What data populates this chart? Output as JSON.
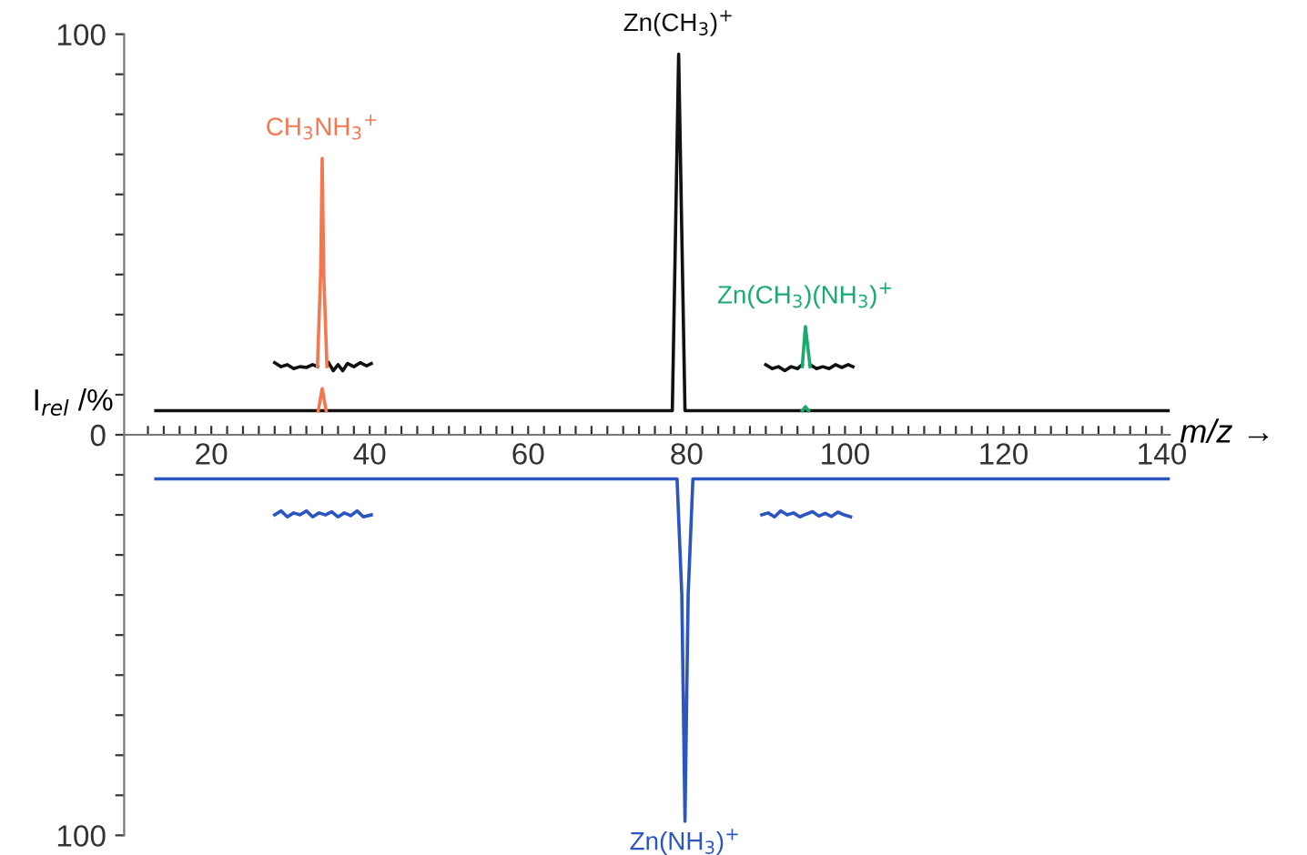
{
  "chart_data": {
    "type": "line",
    "xlabel": "m/z →",
    "ylabel": "I$_{rel}$ /%",
    "xlim": [
      9,
      141
    ],
    "ylim": [
      -100,
      100
    ],
    "xticks": [
      20,
      40,
      60,
      80,
      100,
      120,
      140,
      {
        "value": 12,
        "label": null
      },
      {
        "value": 14,
        "label": null
      },
      {
        "value": 16,
        "label": null
      },
      {
        "value": 18,
        "label": null
      },
      {
        "value": 22,
        "label": null
      },
      {
        "value": 24,
        "label": null
      },
      {
        "value": 26,
        "label": null
      },
      {
        "value": 28,
        "label": null
      },
      {
        "value": 30,
        "label": null
      },
      {
        "value": 32,
        "label": null
      },
      {
        "value": 34,
        "label": null
      },
      {
        "value": 36,
        "label": null
      },
      {
        "value": 38,
        "label": null
      },
      {
        "value": 42,
        "label": null
      },
      {
        "value": 44,
        "label": null
      },
      {
        "value": 46,
        "label": null
      },
      {
        "value": 48,
        "label": null
      },
      {
        "value": 50,
        "label": null
      },
      {
        "value": 52,
        "label": null
      },
      {
        "value": 54,
        "label": null
      },
      {
        "value": 56,
        "label": null
      },
      {
        "value": 58,
        "label": null
      },
      {
        "value": 62,
        "label": null
      },
      {
        "value": 64,
        "label": null
      },
      {
        "value": 66,
        "label": null
      },
      {
        "value": 68,
        "label": null
      },
      {
        "value": 70,
        "label": null
      },
      {
        "value": 72,
        "label": null
      },
      {
        "value": 74,
        "label": null
      },
      {
        "value": 76,
        "label": null
      },
      {
        "value": 78,
        "label": null
      },
      {
        "value": 82,
        "label": null
      },
      {
        "value": 84,
        "label": null
      },
      {
        "value": 86,
        "label": null
      },
      {
        "value": 88,
        "label": null
      },
      {
        "value": 90,
        "label": null
      },
      {
        "value": 92,
        "label": null
      },
      {
        "value": 94,
        "label": null
      },
      {
        "value": 96,
        "label": null
      },
      {
        "value": 98,
        "label": null
      },
      {
        "value": 102,
        "label": null
      },
      {
        "value": 104,
        "label": null
      },
      {
        "value": 106,
        "label": null
      },
      {
        "value": 108,
        "label": null
      },
      {
        "value": 110,
        "label": null
      },
      {
        "value": 112,
        "label": null
      },
      {
        "value": 114,
        "label": null
      },
      {
        "value": 116,
        "label": null
      },
      {
        "value": 118,
        "label": null
      },
      {
        "value": 122,
        "label": null
      },
      {
        "value": 124,
        "label": null
      },
      {
        "value": 126,
        "label": null
      },
      {
        "value": 128,
        "label": null
      },
      {
        "value": 130,
        "label": null
      },
      {
        "value": 132,
        "label": null
      },
      {
        "value": 134,
        "label": null
      },
      {
        "value": 136,
        "label": null
      },
      {
        "value": 138,
        "label": null
      }
    ],
    "yticks": [
      100,
      0,
      {
        "value": -100,
        "label": "100"
      },
      {
        "value": 90,
        "label": null
      },
      {
        "value": 80,
        "label": null
      },
      {
        "value": 70,
        "label": null
      },
      {
        "value": 60,
        "label": null
      },
      {
        "value": 50,
        "label": null
      },
      {
        "value": 40,
        "label": null
      },
      {
        "value": 30,
        "label": null
      },
      {
        "value": 20,
        "label": null
      },
      {
        "value": 10,
        "label": null
      },
      {
        "value": -10,
        "label": null
      },
      {
        "value": -20,
        "label": null
      },
      {
        "value": -30,
        "label": null
      },
      {
        "value": -40,
        "label": null
      },
      {
        "value": -50,
        "label": null
      },
      {
        "value": -60,
        "label": null
      },
      {
        "value": -70,
        "label": null
      },
      {
        "value": -80,
        "label": null
      },
      {
        "value": -90,
        "label": null
      }
    ],
    "grid": false,
    "legend": false,
    "marker": "none",
    "line_style": "solid",
    "series": [
      {
        "name": "Zn(CH$_{3}$)$^{+}$",
        "color": "#111111",
        "x": [
          13,
          50,
          78.2,
          78.6,
          79,
          79.4,
          79.8,
          110,
          141
        ],
        "values": [
          6,
          6,
          6,
          50,
          95,
          50,
          6,
          6,
          6
        ]
      },
      {
        "color": "#111111",
        "x": [
          28,
          28.8,
          29.6,
          30.4,
          31.2,
          32,
          32.8,
          33.4,
          34,
          34.8,
          35.4,
          36,
          36.6,
          37.2,
          38,
          38.8,
          39.6,
          40.2
        ],
        "values": [
          18,
          17,
          17.5,
          16.5,
          17,
          16.8,
          17.5,
          17,
          null,
          18,
          16,
          17.5,
          16,
          17.8,
          17,
          18,
          17.2,
          17.8
        ]
      },
      {
        "color": "#111111",
        "x": [
          90,
          90.8,
          91.6,
          92.4,
          93.2,
          94,
          94.6,
          95,
          95.6,
          96.4,
          97.2,
          98,
          98.8,
          99.6,
          100.4,
          101
        ],
        "values": [
          17.5,
          16.5,
          17,
          16,
          17,
          16.5,
          17.5,
          null,
          17.5,
          16.5,
          17,
          16.5,
          17.5,
          16.8,
          17.5,
          17
        ]
      },
      {
        "name": "CH$_{3}$NH$_{3}$$^{+}$",
        "color": "#f4774f",
        "x": [
          33.4,
          33.8,
          34,
          34.2,
          34.6
        ],
        "values": [
          17,
          40,
          69,
          40,
          17
        ]
      },
      {
        "color": "#f4774f",
        "x": [
          33.5,
          34,
          34.5
        ],
        "values": [
          6,
          11.5,
          6
        ]
      },
      {
        "name": "Zn(CH$_{3}$)(NH$_{3}$)$^{+}$",
        "color": "#1aaa6e",
        "x": [
          94.6,
          95,
          95.6
        ],
        "values": [
          17,
          27,
          17
        ]
      },
      {
        "color": "#1aaa6e",
        "x": [
          94.6,
          95,
          95.4
        ],
        "values": [
          6,
          7,
          6
        ]
      },
      {
        "name": "Zn(NH$_{3}$)$^{+}$",
        "color": "#2b55c0",
        "x": [
          13,
          50,
          78.8,
          79.4,
          79.8,
          80.2,
          80.8,
          110,
          141
        ],
        "values": [
          -11,
          -11,
          -11,
          -40,
          -96.5,
          -40,
          -11,
          -11,
          -11
        ]
      },
      {
        "color": "#2b55c0",
        "x": [
          28,
          28.8,
          29.6,
          30.4,
          31.2,
          32,
          32.8,
          33.6,
          34.4,
          35.2,
          36,
          36.8,
          37.6,
          38.4,
          39.2,
          40.2
        ],
        "values": [
          -20,
          -19,
          -20.5,
          -19.5,
          -20,
          -19,
          -20.5,
          -19.5,
          -20,
          -19.2,
          -20.5,
          -19.5,
          -20.2,
          -19,
          -20.5,
          -20
        ]
      },
      {
        "color": "#2b55c0",
        "x": [
          89.5,
          90.3,
          91.1,
          91.9,
          92.7,
          93.5,
          94.3,
          95.1,
          95.9,
          96.7,
          97.5,
          98.3,
          99.1,
          99.9,
          100.7
        ],
        "values": [
          -20,
          -19.5,
          -20.5,
          -19,
          -20,
          -19.5,
          -20.5,
          -19.8,
          -19.2,
          -20.3,
          -19.6,
          -20.4,
          -19.3,
          -20,
          -20.5
        ]
      }
    ]
  }
}
